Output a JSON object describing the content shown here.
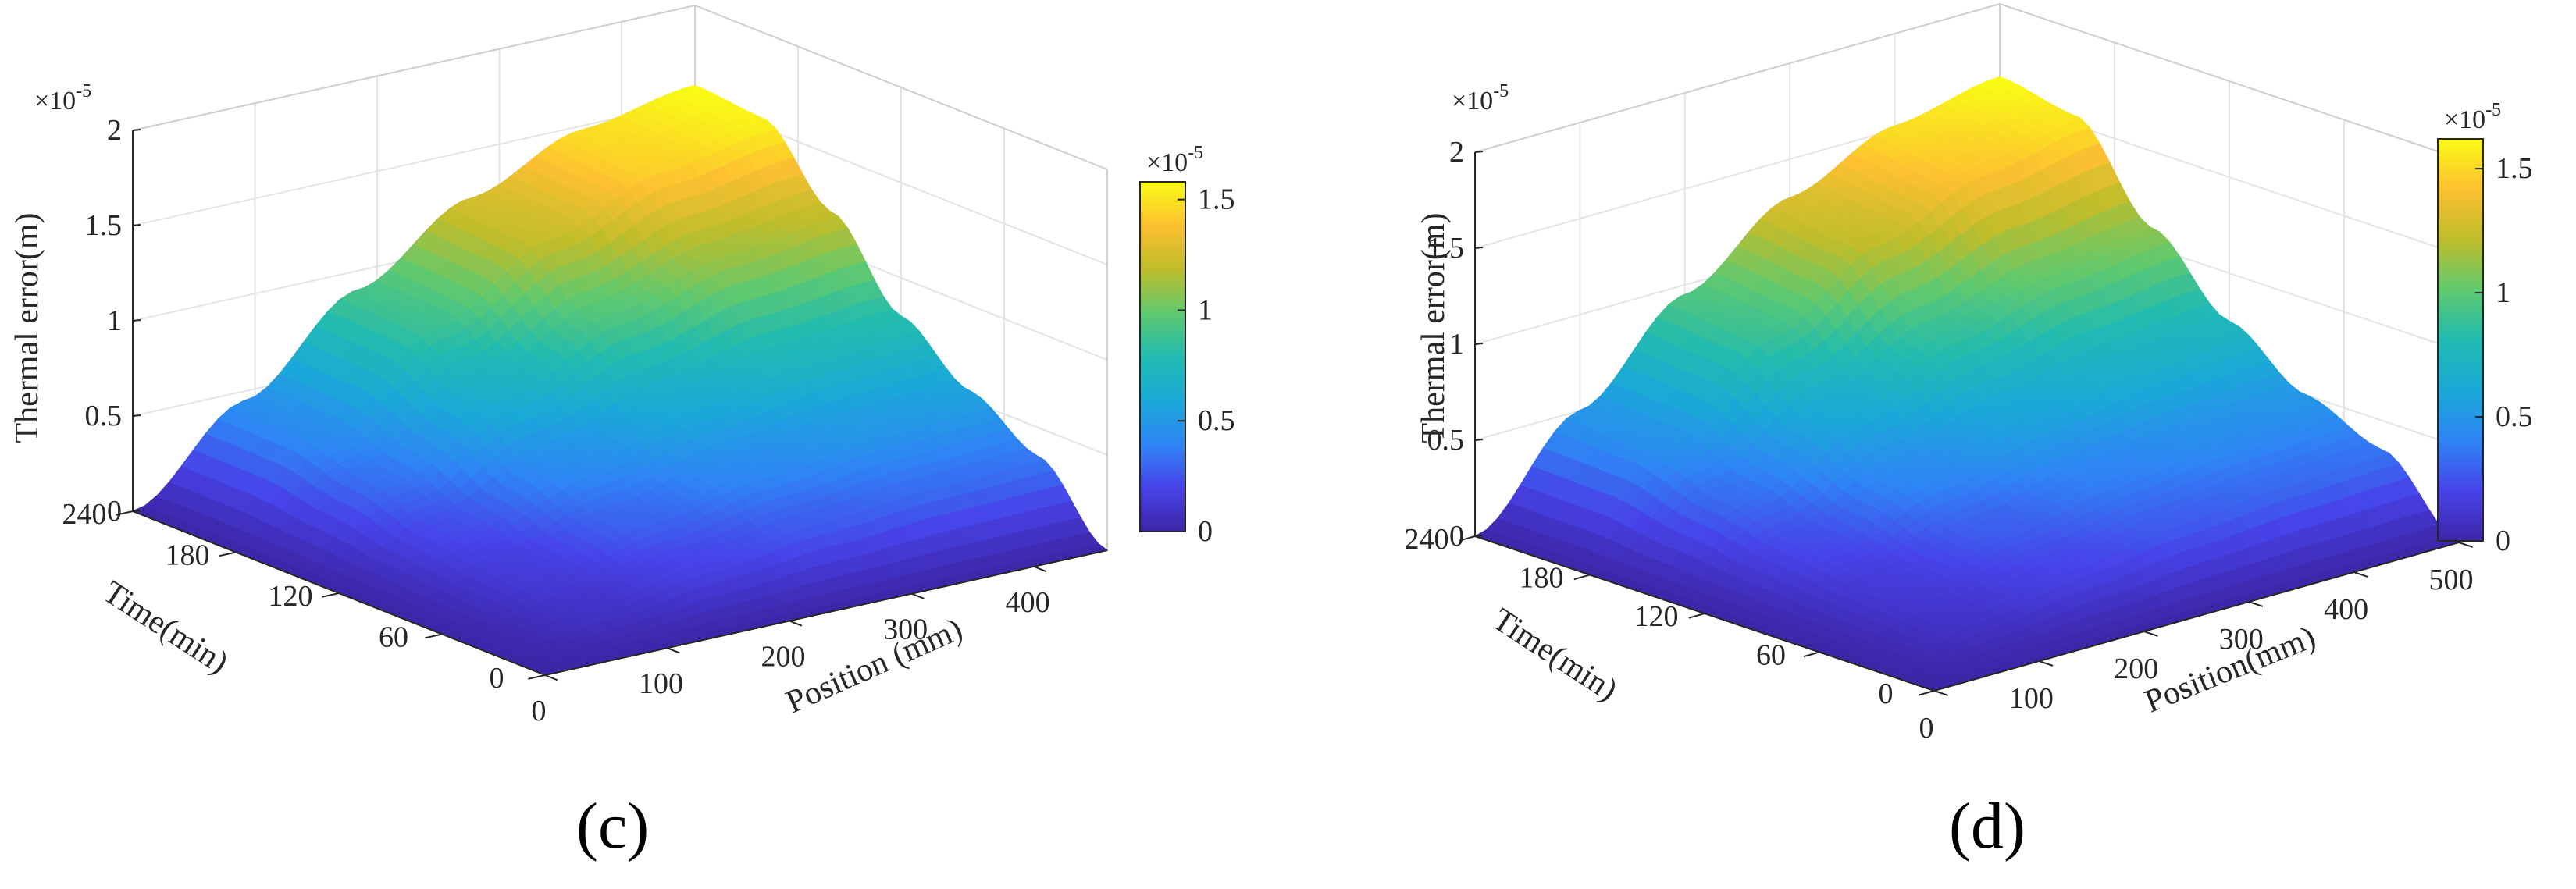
{
  "chart_data": [
    {
      "id": "c",
      "type": "surface",
      "panel_label": "(c)",
      "zlabel": "Thermal error(m)",
      "ylabel": "Time(min)",
      "xlabel": "Position (mm)",
      "z_exponent": "×10",
      "z_exponent_power": "-5",
      "z_ticks": [
        "0",
        "0.5",
        "1",
        "1.5",
        "2"
      ],
      "z_tick_values": [
        0,
        0.5,
        1,
        1.5,
        2
      ],
      "zlim": [
        0,
        2
      ],
      "y_ticks": [
        "0",
        "60",
        "120",
        "180",
        "240"
      ],
      "y_tick_values": [
        0,
        60,
        120,
        180,
        240
      ],
      "ylim": [
        0,
        240
      ],
      "x_ticks": [
        "0",
        "100",
        "200",
        "300",
        "400"
      ],
      "x_tick_values": [
        0,
        100,
        200,
        300,
        400
      ],
      "xlim": [
        0,
        460
      ],
      "colorbar": {
        "exponent": "×10",
        "exponent_power": "-5",
        "ticks": [
          "0",
          "0.5",
          "1",
          "1.5"
        ],
        "tick_values": [
          0,
          0.5,
          1,
          1.5
        ],
        "range": [
          0,
          1.58
        ]
      },
      "peak_value": 1.58,
      "edge_time_max_values": [
        0,
        0.35,
        0.55,
        0.8,
        1.2,
        1.55,
        1.58
      ],
      "edge_position_max_values": [
        0,
        0.45,
        0.9,
        1.25,
        1.48,
        1.58
      ]
    },
    {
      "id": "d",
      "type": "surface",
      "panel_label": "(d)",
      "zlabel": "Thermal error(m)",
      "ylabel": "Time(min)",
      "xlabel": "Position(mm)",
      "z_exponent": "×10",
      "z_exponent_power": "-5",
      "z_ticks": [
        "0",
        "0.5",
        "1",
        "1.5",
        "2"
      ],
      "z_tick_values": [
        0,
        0.5,
        1,
        1.5,
        2
      ],
      "zlim": [
        0,
        2
      ],
      "y_ticks": [
        "0",
        "60",
        "120",
        "180",
        "240"
      ],
      "y_tick_values": [
        0,
        60,
        120,
        180,
        240
      ],
      "ylim": [
        0,
        240
      ],
      "x_ticks": [
        "0",
        "100",
        "200",
        "300",
        "400",
        "500"
      ],
      "x_tick_values": [
        0,
        100,
        200,
        300,
        400,
        500
      ],
      "xlim": [
        0,
        500
      ],
      "colorbar": {
        "exponent": "×10",
        "exponent_power": "-5",
        "ticks": [
          "0",
          "0.5",
          "1",
          "1.5"
        ],
        "tick_values": [
          0,
          0.5,
          1,
          1.5
        ],
        "range": [
          0,
          1.62
        ]
      },
      "peak_value": 1.62,
      "edge_time_max_values": [
        0,
        0.35,
        0.5,
        0.75,
        1.1,
        1.55,
        1.62
      ],
      "edge_position_max_values": [
        0,
        0.5,
        0.95,
        1.3,
        1.52,
        1.62
      ]
    }
  ],
  "colormap": [
    "#3e26a8",
    "#4743e9",
    "#2f85f5",
    "#1aa9d7",
    "#21bbb0",
    "#60c96e",
    "#bebd2b",
    "#fdc031",
    "#f9fb15"
  ]
}
